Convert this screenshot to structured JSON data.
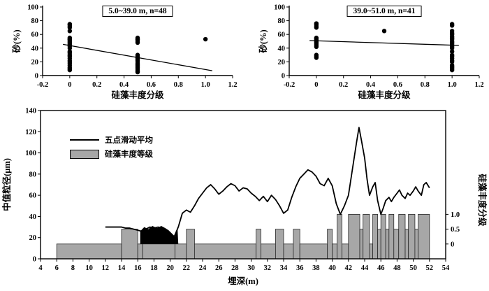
{
  "chart_data": [
    {
      "id": "scatter-left",
      "type": "scatter",
      "annotation": "5.0~39.0 m, n=48",
      "xlabel": "硅藻丰度分级",
      "ylabel": "砂(%)",
      "xlim": [
        -0.2,
        1.2
      ],
      "ylim": [
        0,
        100
      ],
      "xticks": [
        -0.2,
        0,
        0.2,
        0.4,
        0.6,
        0.8,
        1.0,
        1.2
      ],
      "xtick_labels": [
        "-0.2",
        "0",
        "0.2",
        "0.4",
        "0.6",
        "0.8",
        "1.0",
        "1.2"
      ],
      "yticks": [
        0,
        20,
        40,
        60,
        80,
        100
      ],
      "ytick_labels": [
        "0",
        "20",
        "40",
        "60",
        "80",
        "100"
      ],
      "clusters": [
        {
          "x": 0,
          "ys": [
            75,
            74,
            72,
            70,
            65,
            55,
            53,
            52,
            50,
            48,
            46,
            45,
            43,
            40,
            35,
            33,
            30,
            28,
            25,
            22,
            20,
            18,
            15,
            12,
            10,
            8
          ]
        },
        {
          "x": 0.5,
          "ys": [
            55,
            53,
            52,
            50,
            48,
            30,
            28,
            26,
            25,
            23,
            22,
            20,
            18,
            16,
            15,
            13,
            12,
            10,
            8,
            6,
            5
          ]
        },
        {
          "x": 1.0,
          "ys": [
            53
          ]
        }
      ],
      "fit_line": [
        [
          -0.05,
          45.5
        ],
        [
          1.05,
          7
        ]
      ]
    },
    {
      "id": "scatter-right",
      "type": "scatter",
      "annotation": "39.0~51.0 m, n=41",
      "xlabel": "硅藻丰度分级",
      "ylabel": "砂(%)",
      "xlim": [
        -0.2,
        1.2
      ],
      "ylim": [
        0,
        100
      ],
      "xticks": [
        -0.2,
        0,
        0.2,
        0.4,
        0.6,
        0.8,
        1.0,
        1.2
      ],
      "xtick_labels": [
        "-0.2",
        "0",
        "0.2",
        "0.4",
        "0.6",
        "0.8",
        "1.0",
        "1.2"
      ],
      "yticks": [
        0,
        20,
        40,
        60,
        80,
        100
      ],
      "ytick_labels": [
        "0",
        "20",
        "40",
        "60",
        "80",
        "100"
      ],
      "clusters": [
        {
          "x": 0,
          "ys": [
            76,
            74,
            72,
            70,
            55,
            53,
            51,
            50,
            48,
            46,
            44,
            42,
            30,
            28,
            26
          ]
        },
        {
          "x": 0.5,
          "ys": [
            65
          ]
        },
        {
          "x": 1.0,
          "ys": [
            75,
            73,
            65,
            62,
            60,
            57,
            55,
            53,
            50,
            48,
            46,
            44,
            42,
            40,
            35,
            30,
            28,
            25,
            22,
            20,
            15,
            13,
            12,
            10,
            8
          ]
        }
      ],
      "fit_line": [
        [
          -0.05,
          51
        ],
        [
          1.05,
          44
        ]
      ]
    },
    {
      "id": "depth-profile",
      "type": "line+bar",
      "xlabel": "埋深(m)",
      "ylabel_left": "中值粒径(μm)",
      "ylabel_right": "硅藻丰度分级",
      "xlim": [
        4,
        54
      ],
      "ylim_left": [
        0,
        140
      ],
      "xticks": [
        4,
        6,
        8,
        10,
        12,
        14,
        16,
        18,
        20,
        22,
        24,
        26,
        28,
        30,
        32,
        34,
        36,
        38,
        40,
        42,
        44,
        46,
        48,
        50,
        52,
        54
      ],
      "xtick_labels": [
        "4",
        "6",
        "8",
        "10",
        "12",
        "14",
        "16",
        "18",
        "20",
        "22",
        "24",
        "26",
        "28",
        "30",
        "32",
        "34",
        "36",
        "38",
        "40",
        "42",
        "44",
        "46",
        "48",
        "50",
        "52",
        "54"
      ],
      "yticks_left": [
        0,
        20,
        40,
        60,
        80,
        100,
        120,
        140
      ],
      "ytick_labels_left": [
        "0",
        "20",
        "40",
        "60",
        "80",
        "100",
        "120",
        "140"
      ],
      "yticks_right": [
        0,
        0.5,
        1.0
      ],
      "ytick_labels_right": [
        "0",
        "0.5",
        "1.0"
      ],
      "right_axis": {
        "base": 14,
        "scale": 28
      },
      "bar_color": "#a7a7a7",
      "legend": [
        {
          "label": "五点滑动平均",
          "type": "line"
        },
        {
          "label": "硅藻丰度等级",
          "type": "bar"
        }
      ],
      "bar_segments": [
        [
          6,
          14,
          0
        ],
        [
          14,
          16,
          0.5
        ],
        [
          16,
          16.6,
          0
        ],
        [
          16.6,
          20.6,
          0
        ],
        [
          20.6,
          22,
          0
        ],
        [
          22,
          23,
          0.5
        ],
        [
          23,
          30.6,
          0
        ],
        [
          30.6,
          31.2,
          0.5
        ],
        [
          31.2,
          33,
          0
        ],
        [
          33,
          34,
          0.5
        ],
        [
          34,
          35.2,
          0
        ],
        [
          35.2,
          36,
          0.5
        ],
        [
          36,
          39.4,
          0
        ],
        [
          39.4,
          40,
          0.5
        ],
        [
          40,
          40.6,
          0
        ],
        [
          40.6,
          41.2,
          1
        ],
        [
          41.2,
          42,
          0
        ],
        [
          42,
          43.4,
          1
        ],
        [
          43.4,
          43.8,
          0.5
        ],
        [
          43.8,
          44.6,
          1
        ],
        [
          44.6,
          45,
          0
        ],
        [
          45,
          45.6,
          1
        ],
        [
          45.6,
          46,
          0.5
        ],
        [
          46,
          46.6,
          1
        ],
        [
          46.6,
          47,
          0.5
        ],
        [
          47,
          47.6,
          1
        ],
        [
          47.6,
          48.2,
          0.5
        ],
        [
          48.2,
          49,
          1
        ],
        [
          49,
          49.4,
          0.5
        ],
        [
          49.4,
          50.2,
          1
        ],
        [
          50.2,
          50.6,
          0.5
        ],
        [
          50.6,
          52,
          1
        ]
      ],
      "black_area": [
        [
          16.3,
          14
        ],
        [
          16.3,
          26
        ],
        [
          16.8,
          30
        ],
        [
          17.3,
          28
        ],
        [
          17.8,
          31
        ],
        [
          18.4,
          29
        ],
        [
          18.9,
          31
        ],
        [
          19.4,
          29
        ],
        [
          19.8,
          27
        ],
        [
          20.2,
          24
        ],
        [
          20.6,
          21
        ],
        [
          20.9,
          30
        ],
        [
          21.0,
          14
        ]
      ],
      "line_points": [
        [
          12,
          30
        ],
        [
          12.5,
          30
        ],
        [
          13,
          30
        ],
        [
          13.5,
          30
        ],
        [
          14,
          30
        ],
        [
          14.5,
          29
        ],
        [
          15,
          29
        ],
        [
          15.5,
          28
        ],
        [
          16,
          27
        ],
        [
          16.5,
          26
        ],
        [
          17,
          28
        ],
        [
          17.5,
          30
        ],
        [
          18,
          29
        ],
        [
          18.5,
          30
        ],
        [
          19,
          29
        ],
        [
          19.5,
          27
        ],
        [
          20,
          24
        ],
        [
          20.5,
          21
        ],
        [
          21,
          30
        ],
        [
          21.5,
          43
        ],
        [
          22,
          46
        ],
        [
          22.5,
          44
        ],
        [
          23,
          50
        ],
        [
          23.5,
          57
        ],
        [
          24,
          62
        ],
        [
          24.5,
          67
        ],
        [
          25,
          70
        ],
        [
          25.5,
          66
        ],
        [
          26,
          61
        ],
        [
          26.5,
          64
        ],
        [
          27,
          68
        ],
        [
          27.5,
          71
        ],
        [
          28,
          69
        ],
        [
          28.5,
          64
        ],
        [
          29,
          67
        ],
        [
          29.5,
          66
        ],
        [
          30,
          62
        ],
        [
          30.5,
          59
        ],
        [
          31,
          55
        ],
        [
          31.5,
          59
        ],
        [
          32,
          54
        ],
        [
          32.5,
          60
        ],
        [
          33,
          56
        ],
        [
          33.5,
          50
        ],
        [
          34,
          43
        ],
        [
          34.5,
          46
        ],
        [
          35,
          58
        ],
        [
          35.5,
          68
        ],
        [
          36,
          76
        ],
        [
          36.5,
          80
        ],
        [
          37,
          84
        ],
        [
          37.5,
          82
        ],
        [
          38,
          78
        ],
        [
          38.5,
          71
        ],
        [
          39,
          69
        ],
        [
          39.5,
          76
        ],
        [
          40,
          69
        ],
        [
          40.5,
          52
        ],
        [
          41,
          42
        ],
        [
          41.5,
          50
        ],
        [
          42,
          60
        ],
        [
          42.5,
          85
        ],
        [
          43,
          110
        ],
        [
          43.3,
          124
        ],
        [
          43.6,
          112
        ],
        [
          44,
          95
        ],
        [
          44.3,
          75
        ],
        [
          44.6,
          60
        ],
        [
          45,
          68
        ],
        [
          45.3,
          72
        ],
        [
          45.6,
          55
        ],
        [
          46,
          42
        ],
        [
          46.3,
          48
        ],
        [
          46.6,
          55
        ],
        [
          47,
          58
        ],
        [
          47.3,
          54
        ],
        [
          47.6,
          58
        ],
        [
          48,
          62
        ],
        [
          48.3,
          65
        ],
        [
          48.6,
          60
        ],
        [
          49,
          57
        ],
        [
          49.3,
          62
        ],
        [
          49.6,
          60
        ],
        [
          50,
          64
        ],
        [
          50.3,
          68
        ],
        [
          50.6,
          64
        ],
        [
          51,
          60
        ],
        [
          51.3,
          70
        ],
        [
          51.6,
          72
        ],
        [
          52,
          67
        ]
      ]
    }
  ]
}
